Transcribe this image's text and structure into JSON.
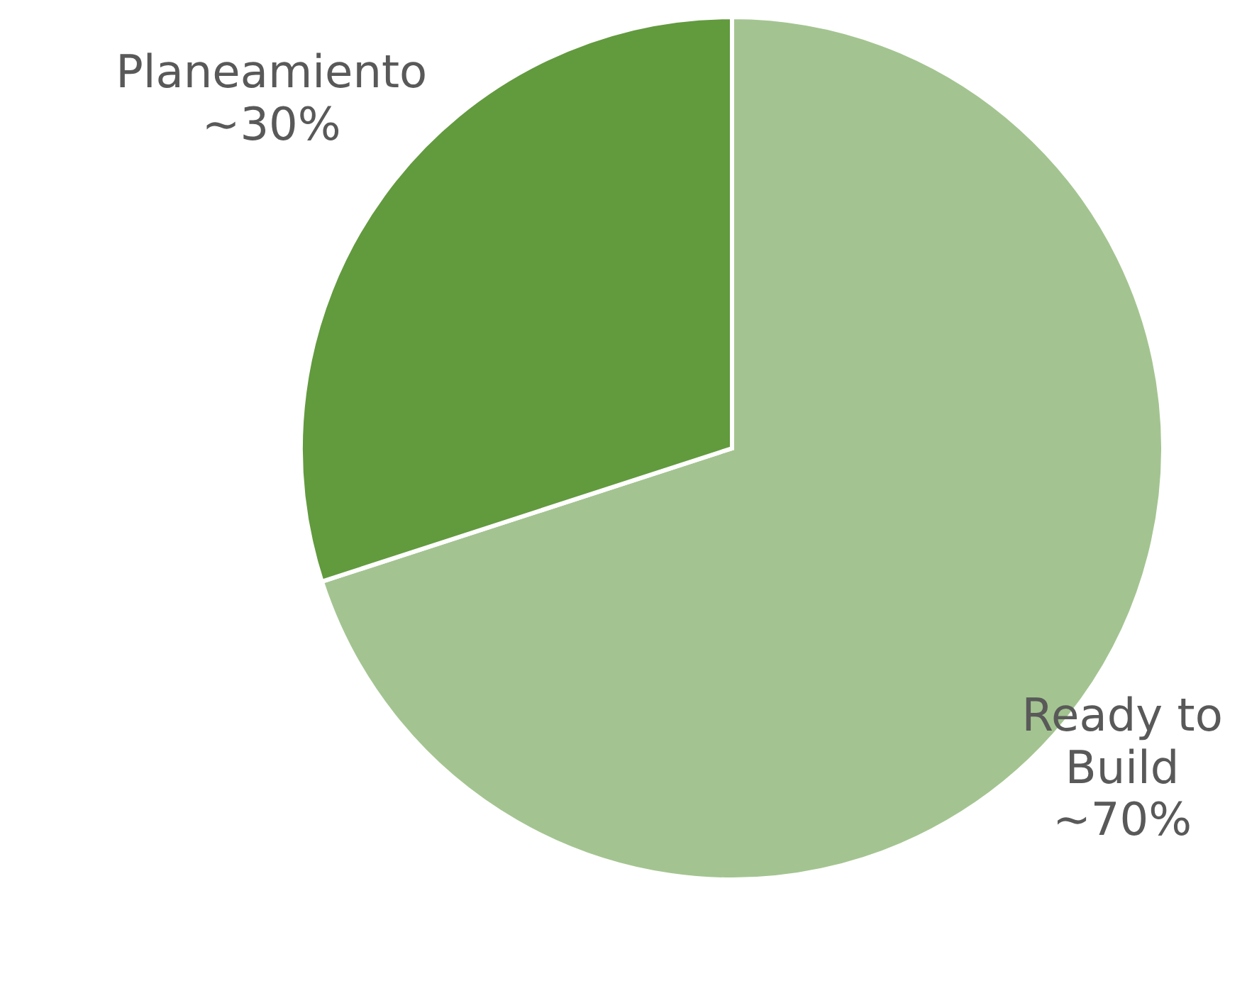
{
  "chart_data": {
    "type": "pie",
    "categories": [
      "Ready to Build",
      "Planeamiento"
    ],
    "values": [
      70,
      30
    ],
    "colors": [
      "#a3c490",
      "#629a3e"
    ],
    "value_labels": [
      "~70%",
      "~30%"
    ]
  }
}
